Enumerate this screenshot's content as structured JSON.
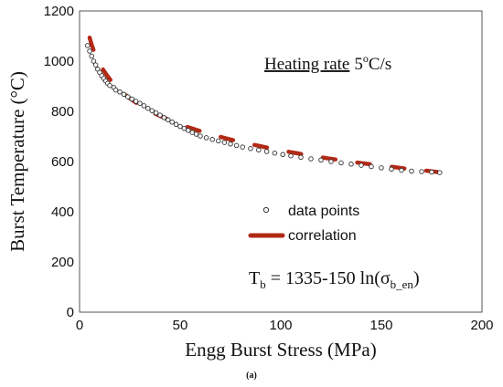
{
  "chart_data": {
    "type": "scatter",
    "xlabel": "Engg Burst Stress (MPa)",
    "ylabel": "Burst Temperature (°C)",
    "xlim": [
      0,
      200
    ],
    "ylim": [
      0,
      1200
    ],
    "xticks": [
      0,
      50,
      100,
      150,
      200
    ],
    "yticks": [
      0,
      200,
      400,
      600,
      800,
      1000,
      1200
    ],
    "grid": false,
    "legend_position": "center-right",
    "annotations": {
      "heating_label": "Heating rate",
      "heating_value": "5",
      "heating_unit_sup": "o",
      "heating_unit": "C/s",
      "formula_T": "T",
      "formula_sub_b": "b",
      "formula_main": " = 1335-150 ln(σ",
      "formula_sub_ben": "b_en",
      "formula_close": ")",
      "subfigure_label": "(a)"
    },
    "series": [
      {
        "name": "data points",
        "marker": "open-circle",
        "color": "#333333",
        "x": [
          4,
          5,
          6,
          7,
          8,
          9,
          10,
          11,
          12,
          13,
          14,
          15,
          17,
          18,
          20,
          22,
          24,
          26,
          28,
          30,
          32,
          34,
          36,
          38,
          40,
          42,
          44,
          46,
          48,
          50,
          52,
          54,
          56,
          58,
          60,
          63,
          66,
          69,
          72,
          75,
          78,
          81,
          85,
          89,
          93,
          97,
          101,
          105,
          110,
          115,
          120,
          125,
          130,
          135,
          140,
          145,
          150,
          155,
          160,
          165,
          170,
          175,
          179
        ],
        "y": [
          1062,
          1040,
          1020,
          1000,
          985,
          968,
          955,
          942,
          931,
          921,
          912,
          903,
          895,
          885,
          877,
          868,
          858,
          849,
          840,
          832,
          822,
          812,
          803,
          794,
          785,
          775,
          766,
          757,
          748,
          740,
          732,
          724,
          716,
          709,
          702,
          695,
          688,
          682,
          676,
          670,
          664,
          658,
          652,
          646,
          640,
          634,
          628,
          623,
          617,
          611,
          606,
          600,
          595,
          590,
          585,
          580,
          575,
          570,
          565,
          562,
          560,
          558,
          556
        ]
      },
      {
        "name": "correlation",
        "marker": "dashed-line",
        "color": "#b22a16",
        "x": [
          5,
          6,
          7,
          8,
          9,
          10,
          11,
          12,
          14,
          16,
          18,
          20,
          22,
          25,
          28,
          31,
          34,
          37,
          40,
          44,
          48,
          52,
          57,
          62,
          68,
          74,
          80,
          87,
          94,
          101,
          108,
          116,
          124,
          132,
          140,
          148,
          156,
          164,
          172,
          178
        ],
        "y": [
          1094,
          1066,
          1043,
          1023,
          1005,
          990,
          975,
          962,
          939,
          919,
          901,
          886,
          871,
          852,
          835,
          820,
          806,
          793,
          782,
          768,
          754,
          742,
          729,
          716,
          703,
          690,
          678,
          666,
          654,
          643,
          633,
          622,
          612,
          603,
          594,
          586,
          578,
          570,
          564,
          558
        ]
      }
    ]
  }
}
